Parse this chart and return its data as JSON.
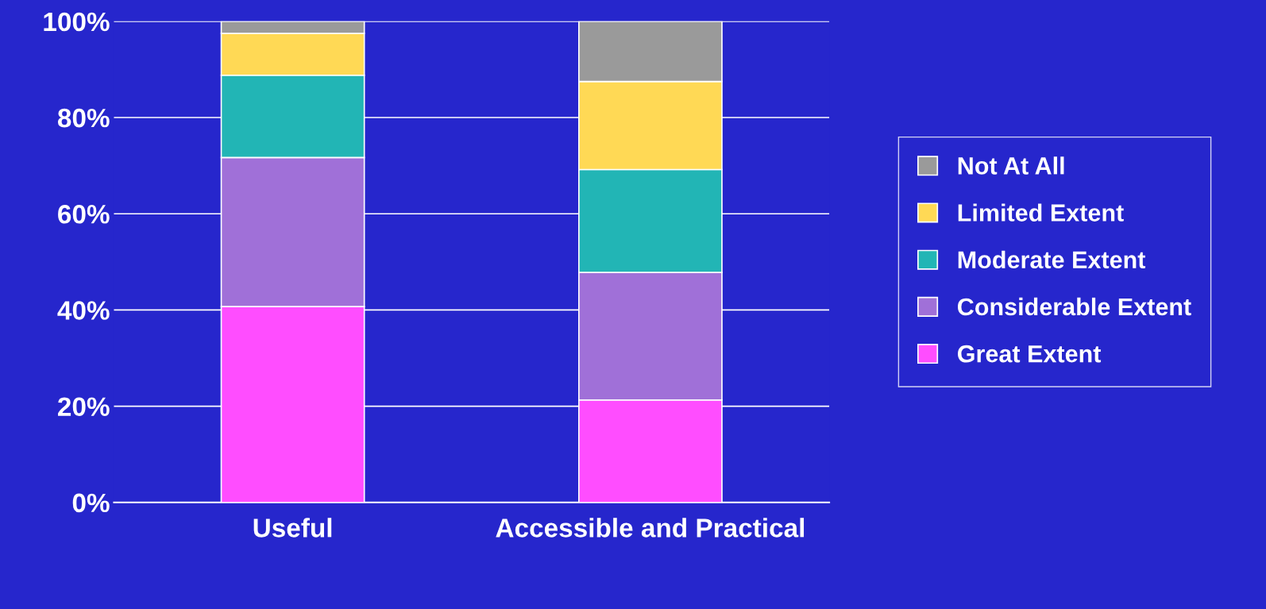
{
  "chart_data": {
    "type": "bar",
    "stacked": true,
    "categories": [
      "Useful",
      "Accessible and Practical"
    ],
    "series": [
      {
        "name": "Great Extent",
        "color": "#ff4dff",
        "values": [
          40.7,
          21.3
        ]
      },
      {
        "name": "Considerable Extent",
        "color": "#a070d8",
        "values": [
          31.0,
          26.5
        ]
      },
      {
        "name": "Moderate Extent",
        "color": "#22b5b5",
        "values": [
          17.1,
          21.4
        ]
      },
      {
        "name": "Limited Extent",
        "color": "#ffd955",
        "values": [
          8.7,
          18.3
        ]
      },
      {
        "name": "Not At All",
        "color": "#9a9a9a",
        "values": [
          2.5,
          12.5
        ]
      }
    ],
    "ylim": [
      0,
      100
    ],
    "yticks": [
      {
        "value": 0,
        "label": "0%"
      },
      {
        "value": 20,
        "label": "20%"
      },
      {
        "value": 40,
        "label": "40%"
      },
      {
        "value": 60,
        "label": "60%"
      },
      {
        "value": 80,
        "label": "80%"
      },
      {
        "value": 100,
        "label": "100%"
      }
    ],
    "grid": "y",
    "legend": "right"
  }
}
